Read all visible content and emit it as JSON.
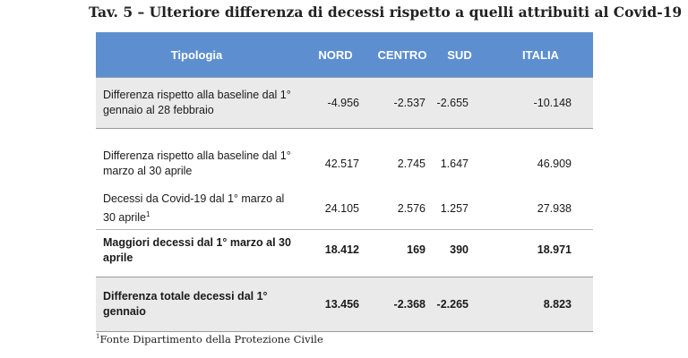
{
  "title": "Tav. 5 – Ulteriore differenza di decessi rispetto a quelli attribuiti al Covid-19",
  "columns": {
    "tipologia": "Tipologia",
    "nord": "NORD",
    "centro": "CENTRO",
    "sud": "SUD",
    "italia": "ITALIA"
  },
  "rows": [
    {
      "label": "Differenza rispetto alla baseline dal 1° gennaio al 28 febbraio",
      "nord": "-4.956",
      "centro": "-2.537",
      "sud": "-2.655",
      "italia": "-10.148"
    },
    {
      "label": "Differenza rispetto alla baseline dal 1° marzo al 30 aprile",
      "nord": "42.517",
      "centro": "2.745",
      "sud": "1.647",
      "italia": "46.909"
    },
    {
      "label": "Decessi da Covid-19 dal 1° marzo al 30 aprile",
      "label_sup": "1",
      "nord": "24.105",
      "centro": "2.576",
      "sud": "1.257",
      "italia": "27.938"
    },
    {
      "label": "Maggiori decessi dal 1° marzo al 30 aprile",
      "nord": "18.412",
      "centro": "169",
      "sud": "390",
      "italia": "18.971"
    },
    {
      "label": "Differenza totale decessi dal 1° gennaio",
      "nord": "13.456",
      "centro": "-2.368",
      "sud": "-2.265",
      "italia": "8.823"
    }
  ],
  "footnote": {
    "sup": "1",
    "text": "Fonte Dipartimento della Protezione Civile"
  }
}
